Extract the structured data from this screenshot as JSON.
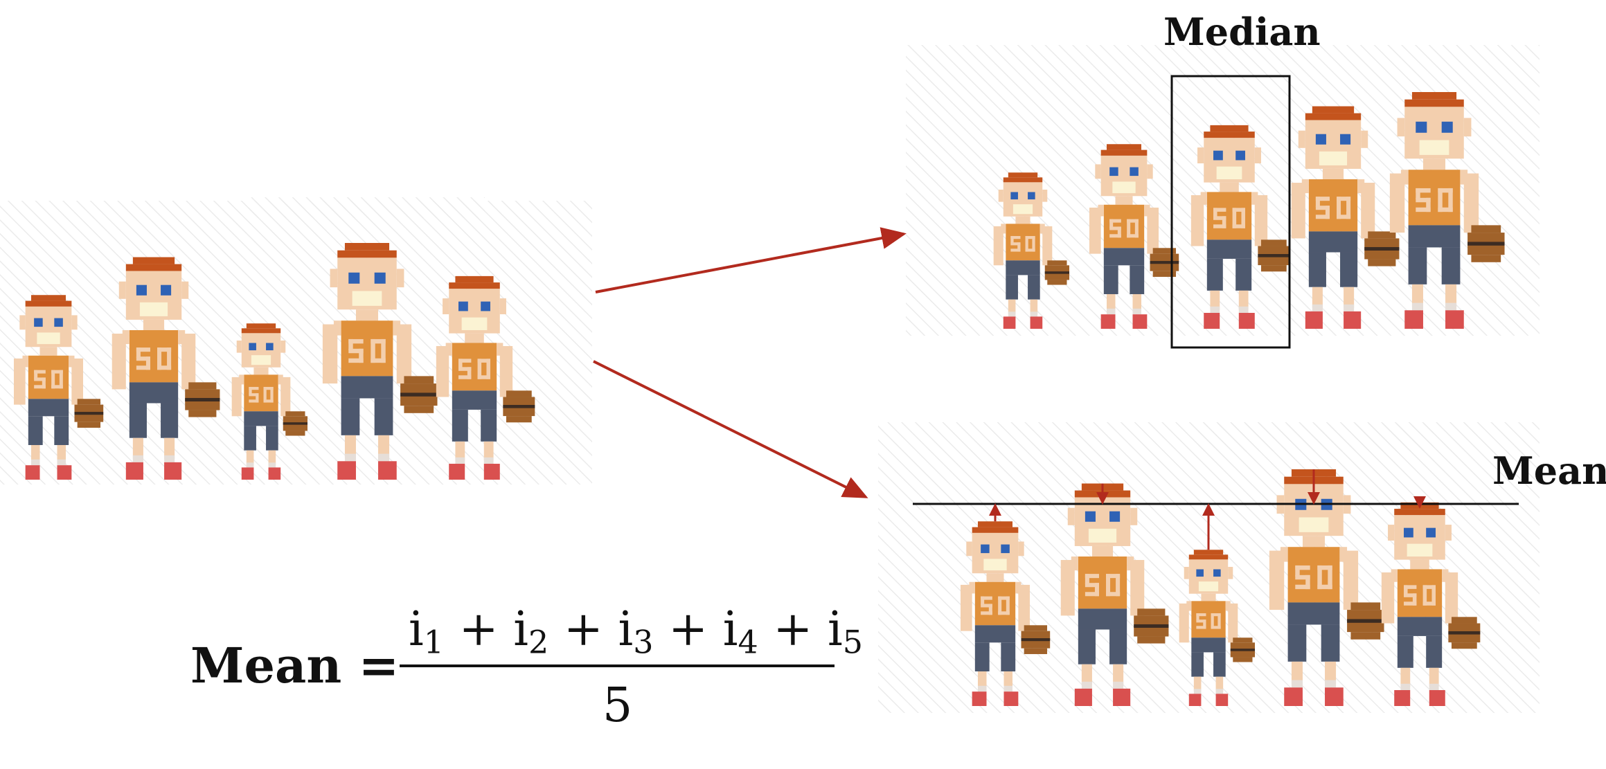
{
  "labels": {
    "median": "Median",
    "mean": "Mean"
  },
  "formula": {
    "lhs": "Mean =",
    "terms": [
      {
        "base": "i",
        "sub": "1"
      },
      {
        "base": "i",
        "sub": "2"
      },
      {
        "base": "i",
        "sub": "3"
      },
      {
        "base": "i",
        "sub": "4"
      },
      {
        "base": "i",
        "sub": "5"
      }
    ],
    "operator": "+",
    "denominator": "5"
  },
  "players": {
    "jersey_text": "50",
    "count": 5,
    "original_heights": [
      0.78,
      0.94,
      0.66,
      1.0,
      0.86
    ],
    "sorted_heights": [
      0.66,
      0.78,
      0.86,
      0.94,
      1.0
    ],
    "median_index": 2
  },
  "colors": {
    "arrow": "#b22a1e",
    "skin": "#f3cfae",
    "skin_shade": "#e8b894",
    "hair": "#c4541d",
    "jersey": "#e0913c",
    "jersey_trim": "#f3cfae",
    "shorts": "#4d586e",
    "shoe": "#d9504f",
    "sock": "#e6ded8",
    "ball": "#a0622a",
    "ball_line": "#3c2c22",
    "eye": "#2f62b5",
    "mouth": "#fbf3d3"
  }
}
